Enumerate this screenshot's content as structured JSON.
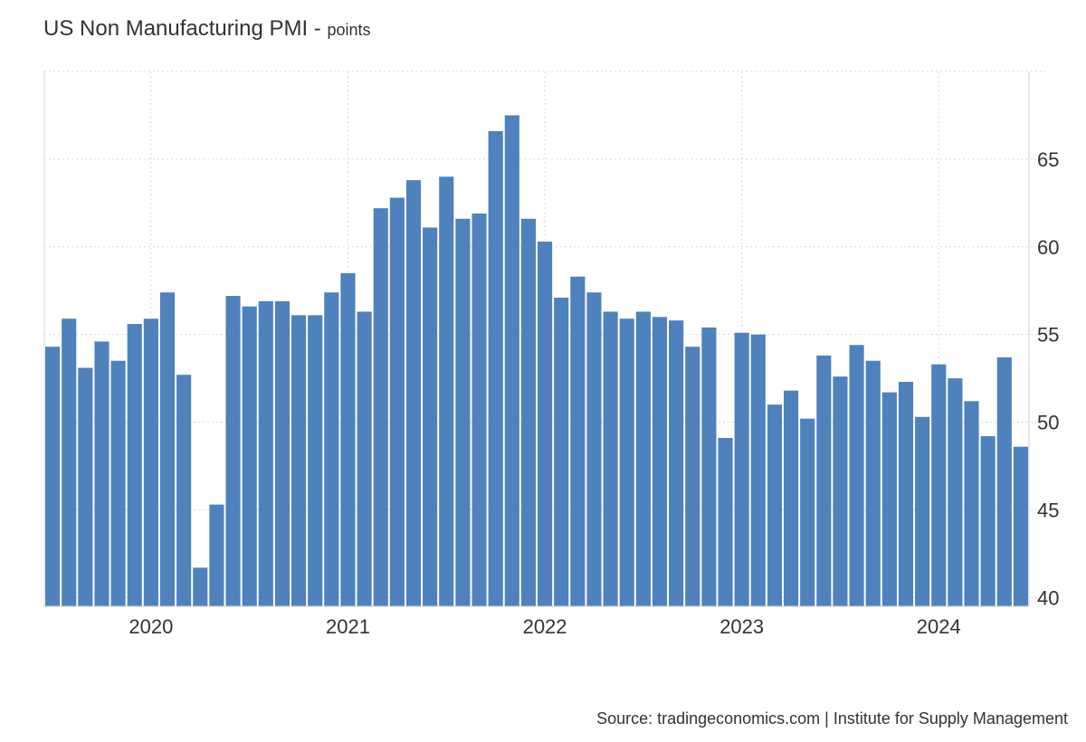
{
  "title": "US Non Manufacturing PMI",
  "unit": "points",
  "source": "Source: tradingeconomics.com | Institute for Supply Management",
  "colors": {
    "bar": "#4f81bd",
    "grid": "#d9d9d9",
    "axis": "#cccccc"
  },
  "chart_data": {
    "type": "bar",
    "title": "US Non Manufacturing PMI",
    "ylabel": "points",
    "xlabel": "",
    "ylim": [
      39.5,
      70
    ],
    "yticks": [
      40,
      45,
      50,
      55,
      60,
      65
    ],
    "xticks": [
      {
        "label": "2020",
        "at": "2020-01"
      },
      {
        "label": "2021",
        "at": "2021-01"
      },
      {
        "label": "2022",
        "at": "2022-01"
      },
      {
        "label": "2023",
        "at": "2023-01"
      },
      {
        "label": "2024",
        "at": "2024-01"
      }
    ],
    "grid": true,
    "categories": [
      "2019-07",
      "2019-08",
      "2019-09",
      "2019-10",
      "2019-11",
      "2019-12",
      "2020-01",
      "2020-02",
      "2020-03",
      "2020-04",
      "2020-05",
      "2020-06",
      "2020-07",
      "2020-08",
      "2020-09",
      "2020-10",
      "2020-11",
      "2020-12",
      "2021-01",
      "2021-02",
      "2021-03",
      "2021-04",
      "2021-05",
      "2021-06",
      "2021-07",
      "2021-08",
      "2021-09",
      "2021-10",
      "2021-11",
      "2021-12",
      "2022-01",
      "2022-02",
      "2022-03",
      "2022-04",
      "2022-05",
      "2022-06",
      "2022-07",
      "2022-08",
      "2022-09",
      "2022-10",
      "2022-11",
      "2022-12",
      "2023-01",
      "2023-02",
      "2023-03",
      "2023-04",
      "2023-05",
      "2023-06",
      "2023-07",
      "2023-08",
      "2023-09",
      "2023-10",
      "2023-11",
      "2023-12",
      "2024-01",
      "2024-02",
      "2024-03",
      "2024-04",
      "2024-05",
      "2024-06"
    ],
    "values": [
      54.3,
      55.9,
      53.1,
      54.6,
      53.5,
      55.6,
      55.9,
      57.4,
      52.7,
      41.7,
      45.3,
      57.2,
      56.6,
      56.9,
      56.9,
      56.1,
      56.1,
      57.4,
      58.5,
      56.3,
      62.2,
      62.8,
      63.8,
      61.1,
      64.0,
      61.6,
      61.9,
      66.6,
      67.5,
      61.6,
      60.3,
      57.1,
      58.3,
      57.4,
      56.3,
      55.9,
      56.3,
      56.0,
      55.8,
      54.3,
      55.4,
      49.1,
      55.1,
      55.0,
      51.0,
      51.8,
      50.2,
      53.8,
      52.6,
      54.4,
      53.5,
      51.7,
      52.3,
      50.3,
      53.3,
      52.5,
      51.2,
      49.2,
      53.7,
      48.6
    ]
  }
}
